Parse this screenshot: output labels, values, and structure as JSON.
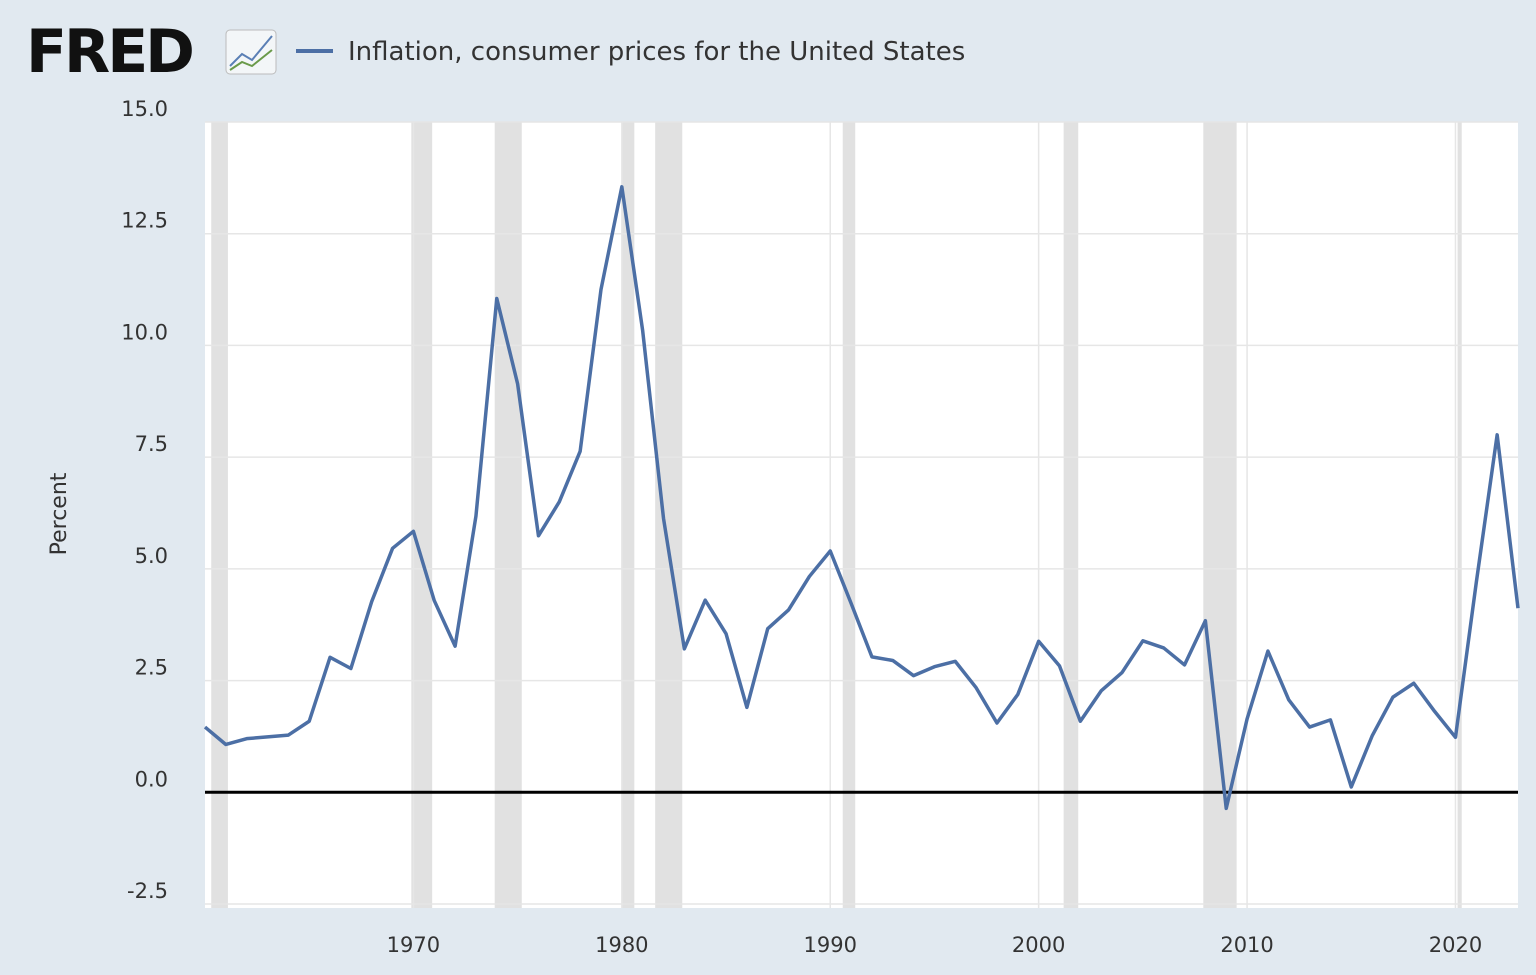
{
  "chart_data": {
    "type": "line",
    "logo": "FRED",
    "ylabel": "Percent",
    "x": [
      1960,
      1961,
      1962,
      1963,
      1964,
      1965,
      1966,
      1967,
      1968,
      1969,
      1970,
      1971,
      1972,
      1973,
      1974,
      1975,
      1976,
      1977,
      1978,
      1979,
      1980,
      1981,
      1982,
      1983,
      1984,
      1985,
      1986,
      1987,
      1988,
      1989,
      1990,
      1991,
      1992,
      1993,
      1994,
      1995,
      1996,
      1997,
      1998,
      1999,
      2000,
      2001,
      2002,
      2003,
      2004,
      2005,
      2006,
      2007,
      2008,
      2009,
      2010,
      2011,
      2012,
      2013,
      2014,
      2015,
      2016,
      2017,
      2018,
      2019,
      2020,
      2021,
      2022,
      2023
    ],
    "series": [
      {
        "name": "Inflation, consumer prices for the United States",
        "color": "#4c6fa5",
        "values": [
          1.46,
          1.07,
          1.2,
          1.24,
          1.28,
          1.59,
          3.02,
          2.77,
          4.27,
          5.46,
          5.84,
          4.29,
          3.27,
          6.18,
          11.05,
          9.14,
          5.74,
          6.5,
          7.63,
          11.25,
          13.55,
          10.33,
          6.13,
          3.21,
          4.3,
          3.55,
          1.9,
          3.66,
          4.08,
          4.83,
          5.4,
          4.23,
          3.03,
          2.95,
          2.61,
          2.81,
          2.93,
          2.34,
          1.55,
          2.19,
          3.38,
          2.83,
          1.59,
          2.27,
          2.68,
          3.39,
          3.23,
          2.85,
          3.84,
          -0.36,
          1.64,
          3.16,
          2.07,
          1.46,
          1.62,
          0.12,
          1.26,
          2.13,
          2.44,
          1.81,
          1.23,
          4.7,
          8.0,
          4.12
        ]
      }
    ],
    "recessions": [
      [
        1960.3,
        1961.1
      ],
      [
        1969.9,
        1970.9
      ],
      [
        1973.9,
        1975.2
      ],
      [
        1980.0,
        1980.6
      ],
      [
        1981.6,
        1982.9
      ],
      [
        1990.6,
        1991.2
      ],
      [
        2001.2,
        2001.9
      ],
      [
        2007.9,
        2009.5
      ],
      [
        2020.1,
        2020.3
      ]
    ],
    "xlim": [
      1960,
      2023
    ],
    "xticks": [
      1970,
      1980,
      1990,
      2000,
      2010,
      2020
    ],
    "ylim": [
      -2.5,
      15
    ],
    "yticks": [
      -2.5,
      {
        "value": 0,
        "label": "0.0"
      },
      2.5,
      {
        "value": 5,
        "label": "5.0"
      },
      7.5,
      {
        "value": 10,
        "label": "10.0"
      },
      12.5,
      {
        "value": 15,
        "label": "15.0"
      }
    ],
    "grid": true
  }
}
